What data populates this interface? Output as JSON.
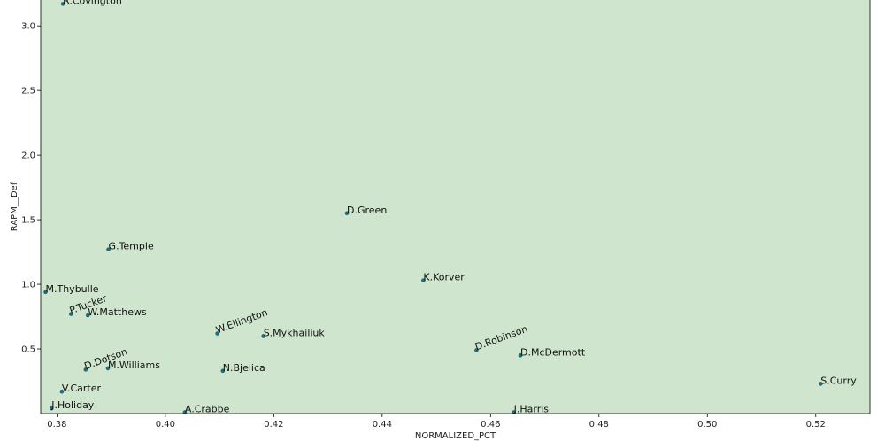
{
  "chart_data": {
    "type": "scatter",
    "xlabel": "NORMALIZED_PCT",
    "ylabel": "RAPM__Def",
    "xlim": [
      0.377,
      0.53
    ],
    "ylim": [
      0.0,
      3.2
    ],
    "x_ticks": [
      0.38,
      0.4,
      0.42,
      0.44,
      0.46,
      0.48,
      0.5,
      0.52
    ],
    "x_tick_labels": [
      "0.38",
      "0.40",
      "0.42",
      "0.44",
      "0.46",
      "0.48",
      "0.50",
      "0.52"
    ],
    "y_ticks": [
      0.5,
      1.0,
      1.5,
      2.0,
      2.5,
      3.0
    ],
    "y_tick_labels": [
      "0.5",
      "1.0",
      "1.5",
      "2.0",
      "2.5",
      "3.0"
    ],
    "grid": false,
    "colors": {
      "background": "#cfe5cd",
      "point": "#1f6b7a",
      "axis": "#000000"
    },
    "points": [
      {
        "label": "R.Covington",
        "x": 0.3811,
        "y": 3.17
      },
      {
        "label": "D.Green",
        "x": 0.4335,
        "y": 1.55
      },
      {
        "label": "G.Temple",
        "x": 0.3895,
        "y": 1.27
      },
      {
        "label": "K.Korver",
        "x": 0.4476,
        "y": 1.03
      },
      {
        "label": "M.Thybulle",
        "x": 0.3779,
        "y": 0.94
      },
      {
        "label": "P.Tucker",
        "x": 0.3826,
        "y": 0.77,
        "rotation": -20
      },
      {
        "label": "W.Matthews",
        "x": 0.3857,
        "y": 0.76
      },
      {
        "label": "W.Ellington",
        "x": 0.4096,
        "y": 0.62,
        "rotation": -20
      },
      {
        "label": "S.Mykhailiuk",
        "x": 0.4181,
        "y": 0.6
      },
      {
        "label": "D.Robinson",
        "x": 0.4574,
        "y": 0.49,
        "rotation": -20
      },
      {
        "label": "D.McDermott",
        "x": 0.4655,
        "y": 0.45
      },
      {
        "label": "D.Dotson",
        "x": 0.3853,
        "y": 0.34,
        "rotation": -20
      },
      {
        "label": "M.Williams",
        "x": 0.3894,
        "y": 0.35
      },
      {
        "label": "N.Bjelica",
        "x": 0.4106,
        "y": 0.33
      },
      {
        "label": "S.Curry",
        "x": 0.5209,
        "y": 0.23
      },
      {
        "label": "V.Carter",
        "x": 0.3809,
        "y": 0.17
      },
      {
        "label": "J.Holiday",
        "x": 0.379,
        "y": 0.04
      },
      {
        "label": "A.Crabbe",
        "x": 0.4036,
        "y": 0.01
      },
      {
        "label": "J.Harris",
        "x": 0.4643,
        "y": 0.01
      }
    ]
  }
}
